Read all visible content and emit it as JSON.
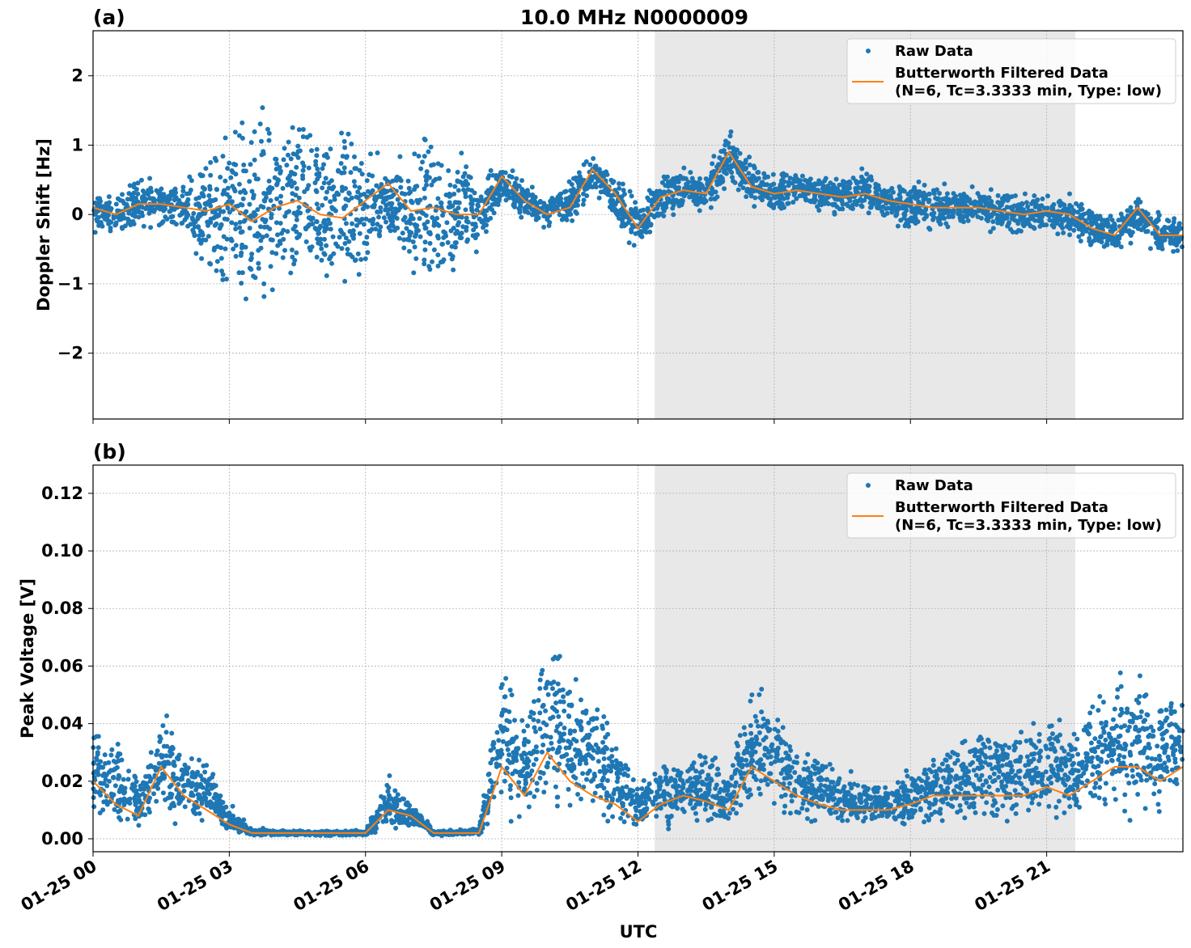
{
  "title": "10.0 MHz N0000009",
  "xlabel": "UTC",
  "x_ticks": [
    "01-25 00",
    "01-25 03",
    "01-25 06",
    "01-25 09",
    "01-25 12",
    "01-25 15",
    "01-25 18",
    "01-25 21"
  ],
  "x_tick_hours": [
    0,
    3,
    6,
    9,
    12,
    15,
    18,
    21
  ],
  "xlim_hours": [
    0,
    24
  ],
  "shaded_span_hours": [
    12.37,
    21.63
  ],
  "colors": {
    "raw": "#1f77b4",
    "filtered": "#ff7f0e",
    "shade": "#e8e8e8"
  },
  "legend": {
    "raw": "Raw Data",
    "filtered_line1": "Butterworth Filtered Data",
    "filtered_line2": "(N=6, Tc=3.3333 min, Type: low)",
    "placement": "upper right"
  },
  "chart_data": [
    {
      "type": "scatter+line",
      "panel_label": "(a)",
      "ylabel": "Doppler Shift [Hz]",
      "ylim": [
        -2.95,
        2.65
      ],
      "y_ticks": [
        "−2",
        "−1",
        "0",
        "1",
        "2"
      ],
      "y_tick_values": [
        -2,
        -1,
        0,
        1,
        2
      ],
      "grid": true,
      "hours": [
        0,
        0.5,
        1,
        1.5,
        2,
        2.5,
        3,
        3.5,
        4,
        4.5,
        5,
        5.5,
        6,
        6.5,
        7,
        7.5,
        8,
        8.5,
        9,
        9.5,
        10,
        10.5,
        11,
        11.5,
        12,
        12.5,
        13,
        13.5,
        14,
        14.5,
        15,
        15.5,
        16,
        16.5,
        17,
        17.5,
        18,
        18.5,
        19,
        19.5,
        20,
        20.5,
        21,
        21.5,
        22,
        22.5,
        23,
        23.5,
        24
      ],
      "filtered": [
        0.1,
        0.0,
        0.15,
        0.15,
        0.1,
        0.05,
        0.15,
        -0.1,
        0.1,
        0.2,
        0.0,
        -0.05,
        0.2,
        0.45,
        0.05,
        0.1,
        0.0,
        0.0,
        0.55,
        0.2,
        0.0,
        0.1,
        0.65,
        0.3,
        -0.2,
        0.25,
        0.35,
        0.3,
        0.9,
        0.4,
        0.3,
        0.35,
        0.3,
        0.25,
        0.3,
        0.2,
        0.15,
        0.1,
        0.1,
        0.1,
        0.05,
        0.0,
        0.05,
        0.0,
        -0.2,
        -0.3,
        0.1,
        -0.3,
        -0.3
      ],
      "raw_low": [
        -0.3,
        -0.3,
        -0.2,
        -0.2,
        -0.3,
        -0.8,
        -1.2,
        -1.6,
        -1.3,
        -1.2,
        -1.3,
        -1.4,
        -1.0,
        -0.3,
        -1.0,
        -1.2,
        -1.1,
        -0.6,
        0.1,
        -0.1,
        -0.2,
        -0.2,
        0.3,
        -0.1,
        -0.6,
        -0.1,
        0.0,
        0.0,
        0.3,
        0.1,
        0.0,
        0.1,
        0.0,
        0.0,
        -0.1,
        -0.1,
        -0.3,
        -0.3,
        -0.2,
        -0.2,
        -0.3,
        -0.3,
        -0.3,
        -0.3,
        -0.5,
        -0.6,
        -0.3,
        -0.6,
        -0.6
      ],
      "raw_high": [
        0.3,
        0.3,
        0.6,
        0.5,
        0.5,
        0.9,
        1.3,
        1.6,
        1.5,
        1.4,
        1.5,
        1.5,
        1.1,
        0.7,
        1.0,
        1.4,
        1.2,
        0.6,
        0.8,
        0.5,
        0.3,
        0.5,
        0.9,
        0.6,
        0.3,
        0.6,
        0.7,
        0.6,
        1.3,
        0.8,
        0.6,
        0.7,
        0.6,
        0.6,
        0.7,
        0.5,
        0.5,
        0.5,
        0.4,
        0.4,
        0.4,
        0.3,
        0.3,
        0.3,
        0.1,
        0.0,
        0.3,
        0.0,
        0.0
      ]
    },
    {
      "type": "scatter+line",
      "panel_label": "(b)",
      "ylabel": "Peak Voltage [V]",
      "ylim": [
        -0.0045,
        0.1298
      ],
      "y_ticks": [
        "0.00",
        "0.02",
        "0.04",
        "0.06",
        "0.08",
        "0.10",
        "0.12"
      ],
      "y_tick_values": [
        0,
        0.02,
        0.04,
        0.06,
        0.08,
        0.1,
        0.12
      ],
      "grid": true,
      "hours": [
        0,
        0.5,
        1,
        1.5,
        2,
        2.5,
        3,
        3.5,
        4,
        4.5,
        5,
        5.5,
        6,
        6.5,
        7,
        7.5,
        8,
        8.5,
        9,
        9.5,
        10,
        10.5,
        11,
        11.5,
        12,
        12.5,
        13,
        13.5,
        14,
        14.5,
        15,
        15.5,
        16,
        16.5,
        17,
        17.5,
        18,
        18.5,
        19,
        19.5,
        20,
        20.5,
        21,
        21.5,
        22,
        22.5,
        23,
        23.5,
        24
      ],
      "filtered": [
        0.02,
        0.012,
        0.008,
        0.025,
        0.015,
        0.01,
        0.005,
        0.002,
        0.002,
        0.002,
        0.002,
        0.002,
        0.002,
        0.01,
        0.008,
        0.002,
        0.002,
        0.002,
        0.025,
        0.015,
        0.03,
        0.02,
        0.015,
        0.012,
        0.006,
        0.012,
        0.015,
        0.013,
        0.01,
        0.025,
        0.02,
        0.015,
        0.012,
        0.01,
        0.01,
        0.01,
        0.012,
        0.015,
        0.015,
        0.015,
        0.015,
        0.015,
        0.018,
        0.015,
        0.02,
        0.025,
        0.025,
        0.02,
        0.025
      ],
      "raw_low": [
        0.005,
        0.004,
        0.003,
        0.005,
        0.004,
        0.004,
        0.002,
        0.001,
        0.001,
        0.001,
        0.001,
        0.001,
        0.001,
        0.003,
        0.003,
        0.001,
        0.001,
        0.001,
        0.008,
        0.005,
        0.008,
        0.006,
        0.005,
        0.004,
        0.002,
        0.004,
        0.005,
        0.005,
        0.004,
        0.007,
        0.006,
        0.005,
        0.005,
        0.004,
        0.004,
        0.004,
        0.004,
        0.005,
        0.005,
        0.005,
        0.005,
        0.005,
        0.006,
        0.005,
        0.006,
        0.007,
        0.007,
        0.006,
        0.007
      ],
      "raw_high": [
        0.04,
        0.035,
        0.02,
        0.05,
        0.035,
        0.03,
        0.012,
        0.004,
        0.003,
        0.003,
        0.003,
        0.003,
        0.003,
        0.022,
        0.015,
        0.003,
        0.003,
        0.004,
        0.06,
        0.045,
        0.08,
        0.06,
        0.05,
        0.04,
        0.02,
        0.03,
        0.03,
        0.03,
        0.025,
        0.06,
        0.05,
        0.035,
        0.03,
        0.025,
        0.02,
        0.02,
        0.025,
        0.03,
        0.035,
        0.04,
        0.04,
        0.04,
        0.045,
        0.04,
        0.05,
        0.06,
        0.06,
        0.055,
        0.06
      ]
    }
  ]
}
